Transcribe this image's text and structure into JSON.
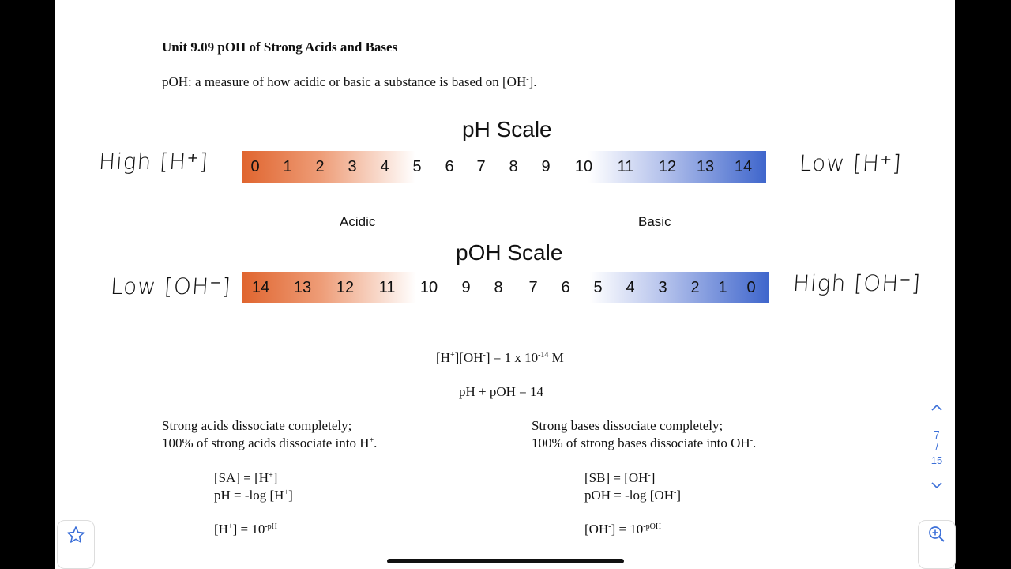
{
  "doc": {
    "title": "Unit 9.09 pOH of Strong Acids and Bases",
    "definition_prefix": "pOH: a measure of how acidic or basic a substance is based on [OH",
    "definition_sup": "-",
    "definition_suffix": "]."
  },
  "ph_scale": {
    "title": "pH Scale",
    "ticks": [
      "0",
      "1",
      "2",
      "3",
      "4",
      "5",
      "6",
      "7",
      "8",
      "9",
      "10",
      "11",
      "12",
      "13",
      "14"
    ],
    "left_note": "High [H⁺]",
    "right_note": "Low [H⁺]"
  },
  "labels": {
    "acidic": "Acidic",
    "basic": "Basic"
  },
  "poh_scale": {
    "title": "pOH Scale",
    "ticks": [
      "14",
      "13",
      "12",
      "11",
      "10",
      "9",
      "8",
      "7",
      "6",
      "5",
      "4",
      "3",
      "2",
      "1",
      "0"
    ],
    "left_note": "Low [OH⁻]",
    "right_note": "High [OH⁻]"
  },
  "equations": {
    "kw_a": "[H",
    "kw_sup1": "+",
    "kw_b": "][OH",
    "kw_sup2": "-",
    "kw_c": "] = 1 x 10",
    "kw_sup3": "-14",
    "kw_d": " M",
    "sum": "pH + pOH = 14"
  },
  "acids": {
    "line1": "Strong acids dissociate completely;",
    "line2_a": "100% of strong acids dissociate into H",
    "line2_sup": "+",
    "line2_b": ".",
    "eq1_a": "[SA] = [H",
    "eq1_sup": "+",
    "eq1_b": "]",
    "eq2_a": "pH = -log [H",
    "eq2_sup": "+",
    "eq2_b": "]",
    "eq3_a": "[H",
    "eq3_sup1": "+",
    "eq3_b": "] = 10",
    "eq3_sup2": "-pH"
  },
  "bases": {
    "line1": "Strong bases dissociate completely;",
    "line2_a": "100% of strong bases dissociate into OH",
    "line2_sup": "-",
    "line2_b": ".",
    "eq1_a": "[SB] = [OH",
    "eq1_sup": "-",
    "eq1_b": "]",
    "eq2_a": "pOH = -log [OH",
    "eq2_sup": "-",
    "eq2_b": "]",
    "eq3_a": "[OH",
    "eq3_sup1": "-",
    "eq3_b": "] = 10",
    "eq3_sup2": "-pOH"
  },
  "viewer": {
    "current_page": "7",
    "separator": "/",
    "total_pages": "15",
    "accent_color": "#3b6fd8"
  }
}
